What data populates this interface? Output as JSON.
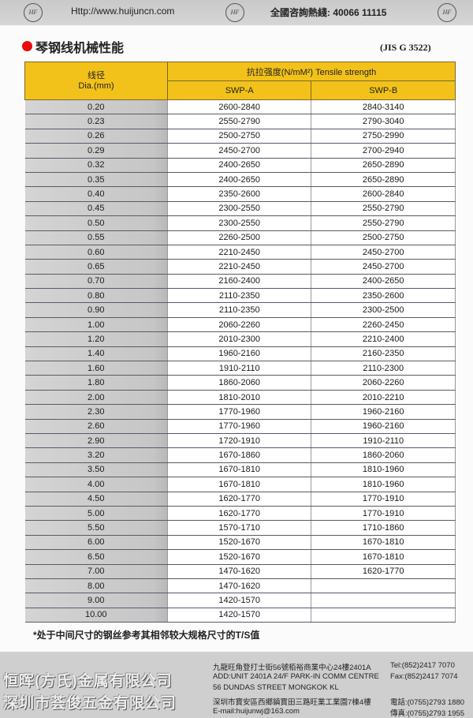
{
  "header": {
    "logo_text": "HF",
    "url": "Http://www.huijuncn.com",
    "hotline": "全國咨詢熱綫: 40066 11115"
  },
  "title": "琴钢线机械性能",
  "standard": "(JIS G 3522)",
  "colors": {
    "title_dot": "#e80a0a",
    "header_bg": "#f3c21a"
  },
  "table": {
    "dia_header_cn": "线径",
    "dia_header_en": "Dia.(mm)",
    "strength_header": "抗拉强度(N/mM²) Tensile strength",
    "col_a": "SWP-A",
    "col_b": "SWP-B",
    "rows": [
      [
        "0.20",
        "2600-2840",
        "2840-3140"
      ],
      [
        "0.23",
        "2550-2790",
        "2790-3040"
      ],
      [
        "0.26",
        "2500-2750",
        "2750-2990"
      ],
      [
        "0.29",
        "2450-2700",
        "2700-2940"
      ],
      [
        "0.32",
        "2400-2650",
        "2650-2890"
      ],
      [
        "0.35",
        "2400-2650",
        "2650-2890"
      ],
      [
        "0.40",
        "2350-2600",
        "2600-2840"
      ],
      [
        "0.45",
        "2300-2550",
        "2550-2790"
      ],
      [
        "0.50",
        "2300-2550",
        "2550-2790"
      ],
      [
        "0.55",
        "2260-2500",
        "2500-2750"
      ],
      [
        "0.60",
        "2210-2450",
        "2450-2700"
      ],
      [
        "0.65",
        "2210-2450",
        "2450-2700"
      ],
      [
        "0.70",
        "2160-2400",
        "2400-2650"
      ],
      [
        "0.80",
        "2110-2350",
        "2350-2600"
      ],
      [
        "0.90",
        "2110-2350",
        "2300-2500"
      ],
      [
        "1.00",
        "2060-2260",
        "2260-2450"
      ],
      [
        "1.20",
        "2010-2300",
        "2210-2400"
      ],
      [
        "1.40",
        "1960-2160",
        "2160-2350"
      ],
      [
        "1.60",
        "1910-2110",
        "2110-2300"
      ],
      [
        "1.80",
        "1860-2060",
        "2060-2260"
      ],
      [
        "2.00",
        "1810-2010",
        "2010-2210"
      ],
      [
        "2.30",
        "1770-1960",
        "1960-2160"
      ],
      [
        "2.60",
        "1770-1960",
        "1960-2160"
      ],
      [
        "2.90",
        "1720-1910",
        "1910-2110"
      ],
      [
        "3.20",
        "1670-1860",
        "1860-2060"
      ],
      [
        "3.50",
        "1670-1810",
        "1810-1960"
      ],
      [
        "4.00",
        "1670-1810",
        "1810-1960"
      ],
      [
        "4.50",
        "1620-1770",
        "1770-1910"
      ],
      [
        "5.00",
        "1620-1770",
        "1770-1910"
      ],
      [
        "5.50",
        "1570-1710",
        "1710-1860"
      ],
      [
        "6.00",
        "1520-1670",
        "1670-1810"
      ],
      [
        "6.50",
        "1520-1670",
        "1670-1810"
      ],
      [
        "7.00",
        "1470-1620",
        "1620-1770"
      ],
      [
        "8.00",
        "1470-1620",
        ""
      ],
      [
        "9.00",
        "1420-1570",
        ""
      ],
      [
        "10.00",
        "1420-1570",
        ""
      ]
    ]
  },
  "note": "*处于中间尺寸的钢丝参考其相邻较大规格尺寸的T/S值",
  "footer": {
    "company1": "恒晖(方氏)金属有限公司",
    "company2": "深圳市荟俊五金有限公司",
    "addr_hk_cn": "九龍旺角登打士街56號栢裕商業中心24樓2401A",
    "addr_hk_en1": "ADD:UNIT 2401A 24/F PARK-IN COMM CENTRE",
    "addr_hk_en2": "56 DUNDAS  STREET  MONGKOK  KL",
    "tel_hk": "Tel:(852)2417 7070",
    "fax_hk": "Fax:(852)2417 7074",
    "addr_sz": "深圳市寶安區西鄉鎮寶田三路旺業工業園7棟4樓",
    "email": "E-mail:huijunwj@163.com",
    "tel_sz": "電話:(0755)2793 1880",
    "fax_sz": "傳真:(0755)2793 1955"
  }
}
